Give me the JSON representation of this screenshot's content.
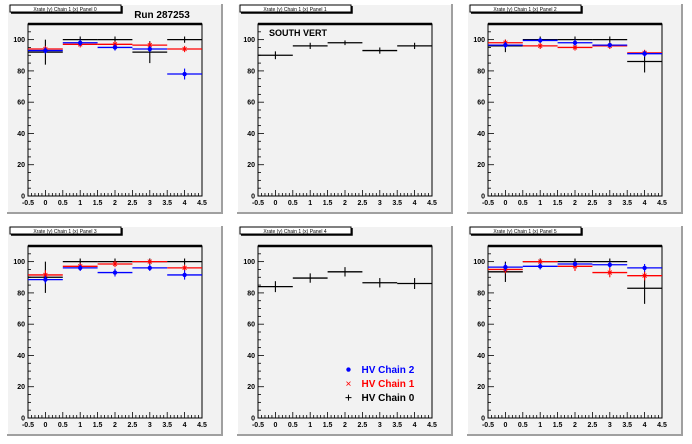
{
  "run_label": "Run 287253",
  "colors": {
    "HV Chain 0": "#000000",
    "HV Chain 1": "#ff0000",
    "HV Chain 2": "#0000ff",
    "pad_bg": "#f2f2f2"
  },
  "legend": {
    "entries": [
      {
        "name": "HV Chain 2",
        "color": "#0000ff",
        "marker": "circle"
      },
      {
        "name": "HV Chain 1",
        "color": "#ff0000",
        "marker": "star"
      },
      {
        "name": "HV Chain 0",
        "color": "#000000",
        "marker": "cross"
      }
    ],
    "placement": "bottom-right",
    "panel": 4
  },
  "chart_data": [
    {
      "type": "scatter",
      "title": "Xrate (y) Chain 1 (x) Panel 0",
      "annotation": "",
      "xlim": [
        -0.5,
        4.5
      ],
      "ylim": [
        0,
        110
      ],
      "xticks": [
        "-0.5",
        "0",
        "0.5",
        "1",
        "1.5",
        "2",
        "2.5",
        "3",
        "3.5",
        "4",
        "4.5"
      ],
      "yticks": [
        "0",
        "20",
        "40",
        "60",
        "80",
        "100"
      ],
      "x": [
        0,
        1,
        2,
        3,
        4
      ],
      "series": [
        {
          "name": "HV Chain 0",
          "values": [
            92,
            100,
            100,
            92,
            100
          ],
          "errors": [
            8,
            2,
            2,
            7,
            2
          ]
        },
        {
          "name": "HV Chain 1",
          "values": [
            94,
            97,
            97,
            96.5,
            94
          ],
          "errors": [
            2,
            2,
            2,
            2,
            2
          ]
        },
        {
          "name": "HV Chain 2",
          "values": [
            93,
            98,
            95,
            94,
            78
          ],
          "errors": [
            2,
            2,
            2,
            2,
            3.5
          ]
        }
      ]
    },
    {
      "type": "scatter",
      "title": "Xrate (y) Chain 1 (x) Panel 1",
      "annotation": "SOUTH VERT",
      "xlim": [
        -0.5,
        4.5
      ],
      "ylim": [
        0,
        110
      ],
      "xticks": [
        "-0.5",
        "0",
        "0.5",
        "1",
        "1.5",
        "2",
        "2.5",
        "3",
        "3.5",
        "4",
        "4.5"
      ],
      "yticks": [
        "0",
        "20",
        "40",
        "60",
        "80",
        "100"
      ],
      "x": [
        0,
        1,
        2,
        3,
        4
      ],
      "series": [
        {
          "name": "HV Chain 0",
          "values": [
            90,
            96,
            98,
            93,
            96
          ],
          "errors": [
            2.5,
            2,
            1.5,
            2,
            2
          ]
        }
      ]
    },
    {
      "type": "scatter",
      "title": "Xrate (y) Chain 1 (x) Panel 2",
      "annotation": "",
      "xlim": [
        -0.5,
        4.5
      ],
      "ylim": [
        0,
        110
      ],
      "xticks": [
        "-0.5",
        "0",
        "0.5",
        "1",
        "1.5",
        "2",
        "2.5",
        "3",
        "3.5",
        "4",
        "4.5"
      ],
      "yticks": [
        "0",
        "20",
        "40",
        "60",
        "80",
        "100"
      ],
      "x": [
        0,
        1,
        2,
        3,
        4
      ],
      "series": [
        {
          "name": "HV Chain 0",
          "values": [
            96,
            100,
            100,
            100,
            86
          ],
          "errors": [
            4,
            2,
            2,
            2,
            7
          ]
        },
        {
          "name": "HV Chain 1",
          "values": [
            98,
            96,
            95,
            96,
            91.5
          ],
          "errors": [
            2,
            2,
            2,
            2,
            2
          ]
        },
        {
          "name": "HV Chain 2",
          "values": [
            96.5,
            99.5,
            98,
            96.5,
            91
          ],
          "errors": [
            2,
            1.5,
            2,
            1.5,
            2
          ]
        }
      ]
    },
    {
      "type": "scatter",
      "title": "Xrate (y) Chain 1 (x) Panel 3",
      "annotation": "",
      "xlim": [
        -0.5,
        4.5
      ],
      "ylim": [
        0,
        110
      ],
      "xticks": [
        "-0.5",
        "0",
        "0.5",
        "1",
        "1.5",
        "2",
        "2.5",
        "3",
        "3.5",
        "4",
        "4.5"
      ],
      "yticks": [
        "0",
        "20",
        "40",
        "60",
        "80",
        "100"
      ],
      "x": [
        0,
        1,
        2,
        3,
        4
      ],
      "series": [
        {
          "name": "HV Chain 0",
          "values": [
            90,
            100,
            100,
            100,
            100
          ],
          "errors": [
            10,
            2,
            2,
            2,
            2
          ]
        },
        {
          "name": "HV Chain 1",
          "values": [
            91.5,
            97,
            98.5,
            100,
            96
          ],
          "errors": [
            3,
            2,
            2,
            1.5,
            2
          ]
        },
        {
          "name": "HV Chain 2",
          "values": [
            88.5,
            96,
            93,
            96,
            91.5
          ],
          "errors": [
            2.5,
            2,
            2.5,
            2,
            3
          ]
        }
      ]
    },
    {
      "type": "scatter",
      "title": "Xrate (y) Chain 1 (x) Panel 4",
      "annotation": "",
      "xlim": [
        -0.5,
        4.5
      ],
      "ylim": [
        0,
        110
      ],
      "xticks": [
        "-0.5",
        "0",
        "0.5",
        "1",
        "1.5",
        "2",
        "2.5",
        "3",
        "3.5",
        "4",
        "4.5"
      ],
      "yticks": [
        "0",
        "20",
        "40",
        "60",
        "80",
        "100"
      ],
      "x": [
        0,
        1,
        2,
        3,
        4
      ],
      "series": [
        {
          "name": "HV Chain 0",
          "values": [
            84,
            89.5,
            93.5,
            86.5,
            86
          ],
          "errors": [
            3.5,
            3,
            3,
            3,
            3.5
          ]
        }
      ]
    },
    {
      "type": "scatter",
      "title": "Xrate (y) Chain 1 (x) Panel 5",
      "annotation": "",
      "xlim": [
        -0.5,
        4.5
      ],
      "ylim": [
        0,
        110
      ],
      "xticks": [
        "-0.5",
        "0",
        "0.5",
        "1",
        "1.5",
        "2",
        "2.5",
        "3",
        "3.5",
        "4",
        "4.5"
      ],
      "yticks": [
        "0",
        "20",
        "40",
        "60",
        "80",
        "100"
      ],
      "x": [
        0,
        1,
        2,
        3,
        4
      ],
      "series": [
        {
          "name": "HV Chain 0",
          "values": [
            93.5,
            100,
            100,
            100,
            83
          ],
          "errors": [
            6.5,
            2,
            2,
            2,
            10
          ]
        },
        {
          "name": "HV Chain 1",
          "values": [
            95,
            100,
            97,
            93,
            91
          ],
          "errors": [
            2.5,
            1.5,
            3,
            3,
            3
          ]
        },
        {
          "name": "HV Chain 2",
          "values": [
            96.5,
            97,
            98.5,
            98,
            96
          ],
          "errors": [
            2.5,
            2,
            1.5,
            2,
            2.5
          ]
        }
      ]
    }
  ]
}
